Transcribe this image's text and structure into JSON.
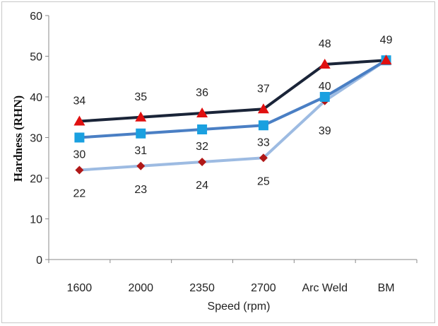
{
  "chart_data": {
    "type": "line",
    "title": "",
    "xlabel": "Speed (rpm)",
    "ylabel": "Hardness (RHN)",
    "categories": [
      "1600",
      "2000",
      "2350",
      "2700",
      "Arc Weld",
      "BM"
    ],
    "ylim": [
      0,
      60
    ],
    "yticks": [
      "0",
      "10",
      "20",
      "30",
      "40",
      "50",
      "60"
    ],
    "grid": false,
    "legend": "none",
    "series": [
      {
        "values": [
          34,
          35,
          36,
          37,
          48,
          49
        ],
        "labels": [
          "34",
          "35",
          "36",
          "37",
          "48",
          "49"
        ],
        "color": "#1a2438",
        "marker": "triangle",
        "marker_color": "#e01010"
      },
      {
        "values": [
          30,
          31,
          32,
          33,
          40,
          49
        ],
        "labels": [
          "30",
          "31",
          "32",
          "33",
          "40",
          ""
        ],
        "color": "#4a7fc4",
        "marker": "square",
        "marker_color": "#1aa0e0"
      },
      {
        "values": [
          22,
          23,
          24,
          25,
          39,
          49
        ],
        "labels": [
          "22",
          "23",
          "24",
          "25",
          "39",
          ""
        ],
        "color": "#9dbbe2",
        "marker": "diamond",
        "marker_color": "#b01818"
      }
    ]
  }
}
